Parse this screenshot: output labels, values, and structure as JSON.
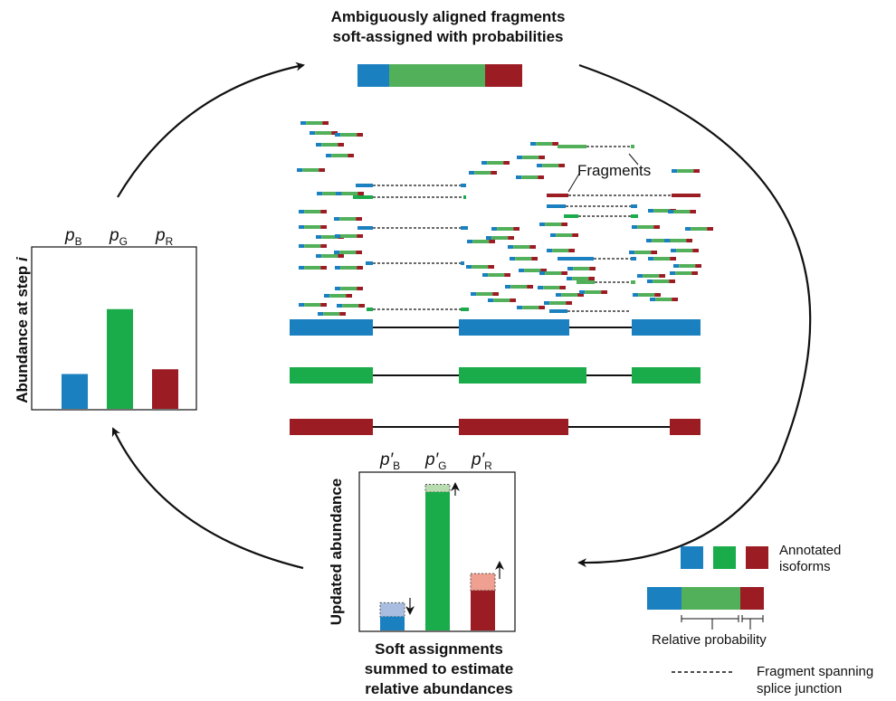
{
  "colors": {
    "blue": "#1a80c0",
    "green": "#1aac4a",
    "red": "#9c1c24",
    "light_green": "#52b05a",
    "light_blue": "#a9bde0",
    "light_green_dash": "#b8dbb0",
    "light_red": "#f0a090"
  },
  "top_title": {
    "line1": "Ambiguously aligned fragments",
    "line2": "soft-assigned with probabilities"
  },
  "fragments_label": "Fragments",
  "left_panel": {
    "ylabel": "Abundance at step",
    "ylabel_italic": "i",
    "p_labels": [
      "B",
      "G",
      "R"
    ],
    "values": [
      0.22,
      0.63,
      0.25
    ]
  },
  "bottom_panel": {
    "ylabel": "Updated abundance",
    "p_labels": [
      "B",
      "G",
      "R"
    ],
    "values": [
      0.09,
      0.9,
      0.26
    ],
    "previous_values": [
      0.18,
      0.95,
      0.37
    ],
    "caption": [
      "Soft assignments",
      "summed to estimate",
      "relative abundances"
    ]
  },
  "legend": {
    "isoforms_line1": "Annotated",
    "isoforms_line2": "isoforms",
    "rel_prob": "Relative probability",
    "splice_line1": "Fragment spanning",
    "splice_line2": "splice junction"
  }
}
